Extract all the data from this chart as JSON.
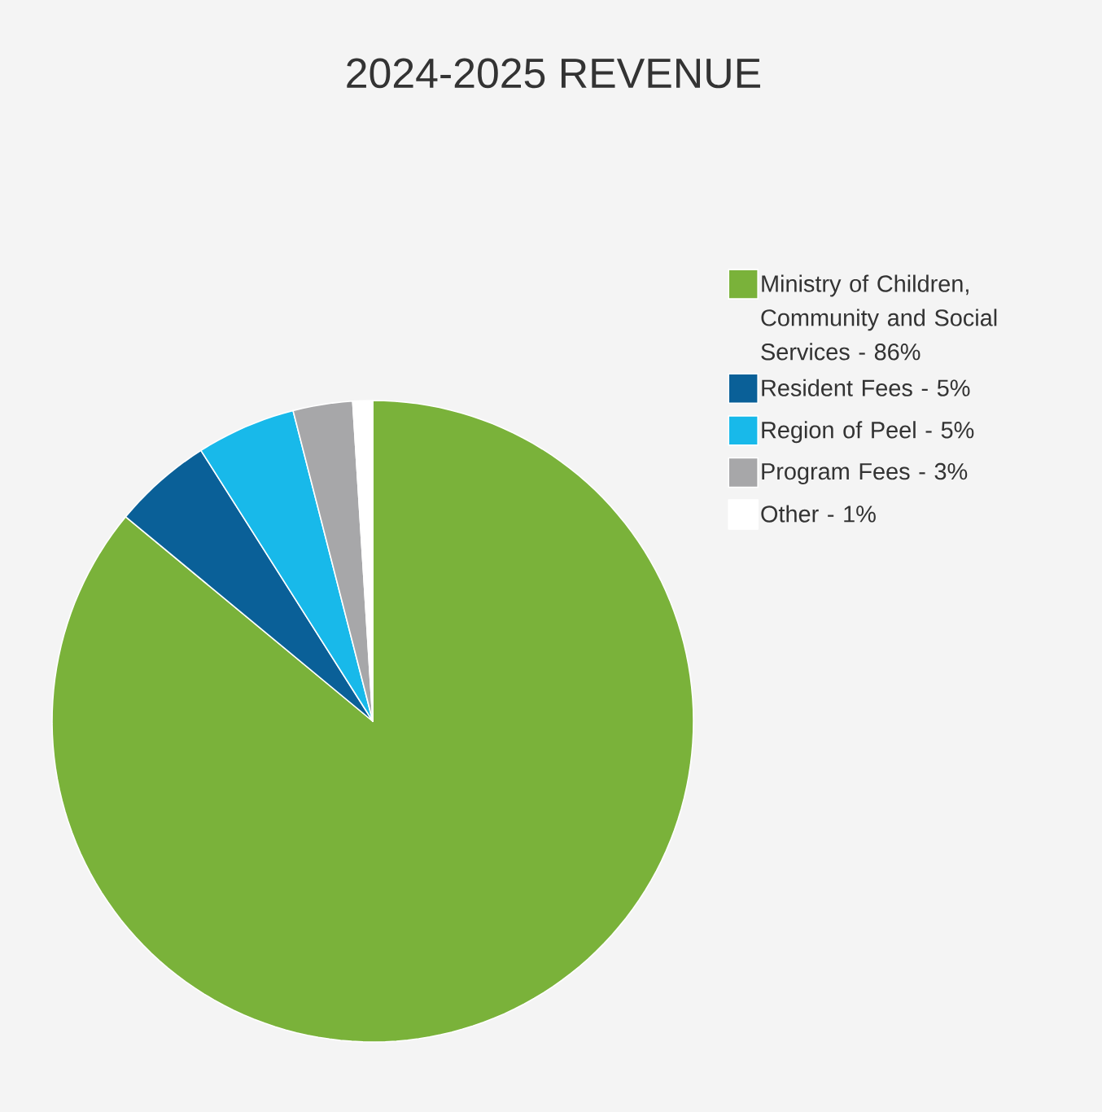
{
  "chart_data": {
    "type": "pie",
    "title": "2024-2025 REVENUE",
    "categories": [
      "Ministry of Children, Community and Social Services - 86%",
      "Resident Fees - 5%",
      "Region of Peel - 5%",
      "Program Fees - 3%",
      "Other - 1%"
    ],
    "values": [
      86,
      5,
      5,
      3,
      1
    ],
    "colors": [
      "#7ab23a",
      "#0a6098",
      "#18b9ea",
      "#a7a7a9",
      "#ffffff"
    ],
    "legend": "right"
  }
}
